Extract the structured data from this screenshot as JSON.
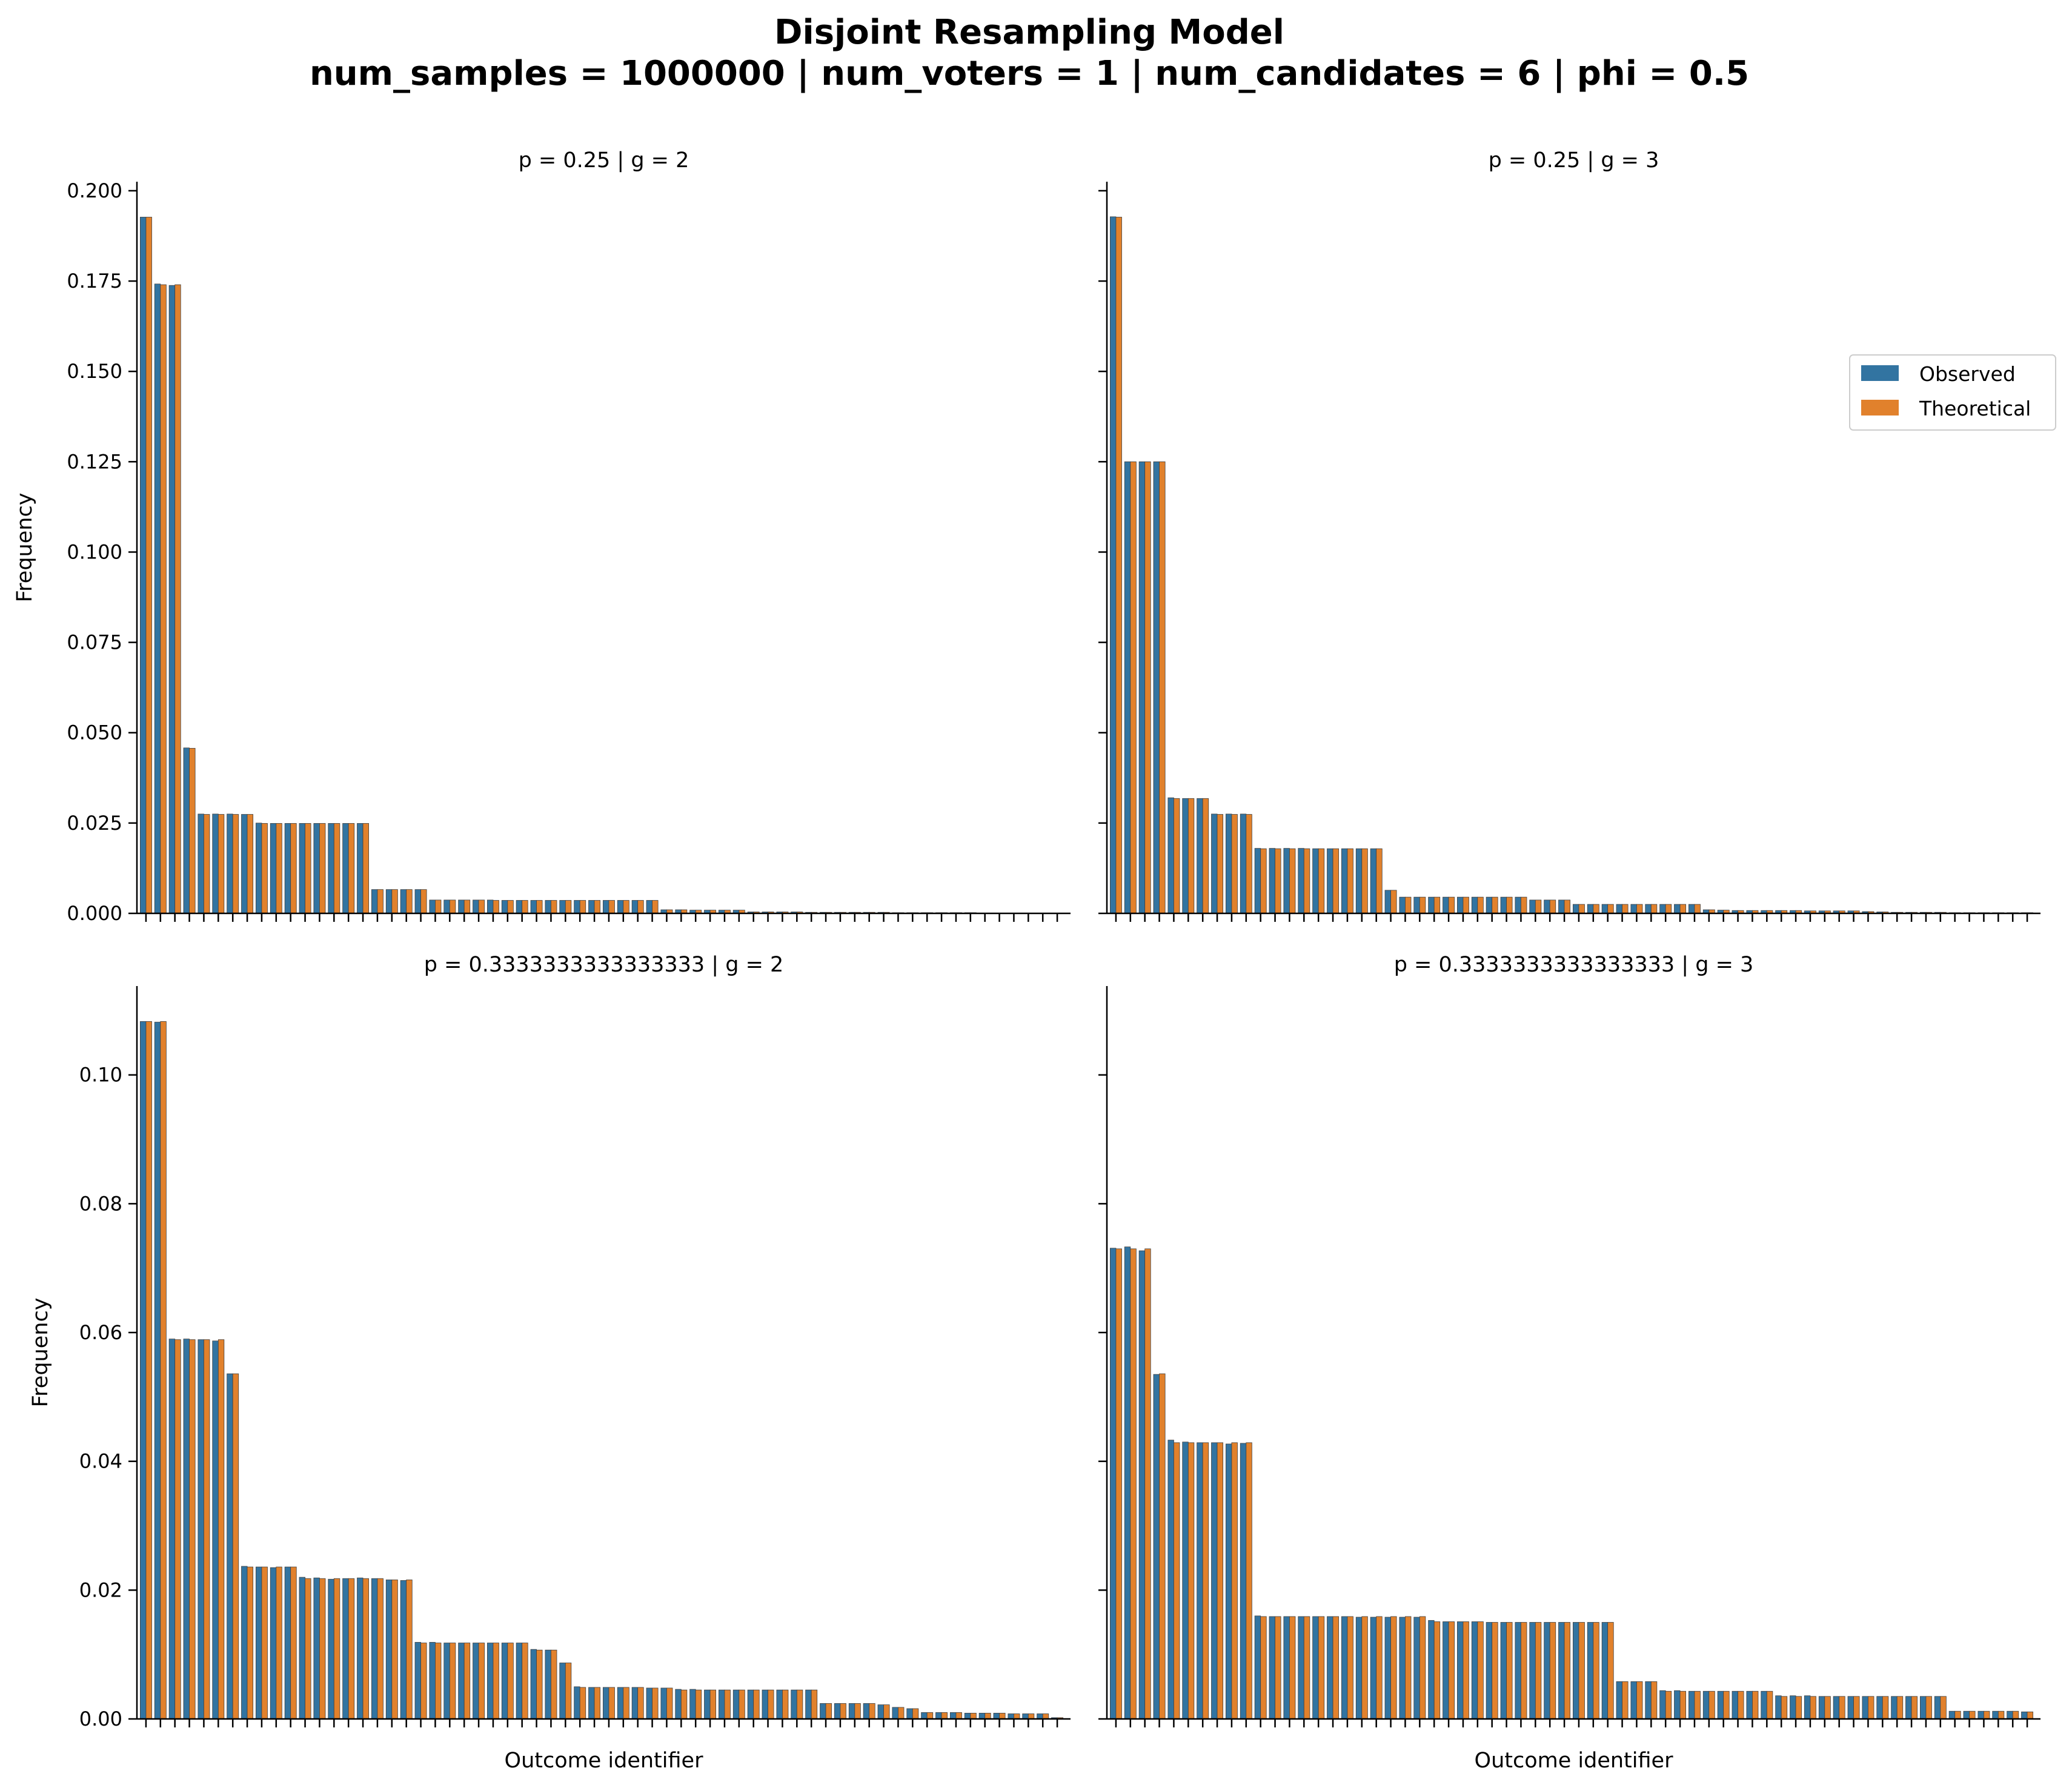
{
  "figure": {
    "title_line1": "Disjoint Resampling Model",
    "title_line2": "num_samples = 1000000 | num_voters = 1 | num_candidates = 6 | phi = 0.5"
  },
  "legend": {
    "items": [
      {
        "label": "Observed",
        "color": "#3274a1"
      },
      {
        "label": "Theoretical",
        "color": "#e1812c"
      }
    ],
    "placement": "right, beside top-right panel"
  },
  "chart_data": [
    {
      "type": "bar",
      "title": "p = 0.25 | g = 2",
      "xlabel": "",
      "ylabel": "Frequency",
      "ylim": [
        0,
        0.2025
      ],
      "yticks": [
        "0.000",
        "0.025",
        "0.050",
        "0.075",
        "0.100",
        "0.125",
        "0.150",
        "0.175",
        "0.200"
      ],
      "ytick_values": [
        0,
        0.025,
        0.05,
        0.075,
        0.1,
        0.125,
        0.15,
        0.175,
        0.2
      ],
      "num_categories": 64,
      "x_tick_labels": "unlabeled",
      "series": [
        {
          "name": "Observed",
          "values": [
            0.1927,
            0.1742,
            0.1738,
            0.0458,
            0.0275,
            0.0275,
            0.0275,
            0.0274,
            0.025,
            0.0249,
            0.0249,
            0.0249,
            0.0249,
            0.0249,
            0.0249,
            0.0249,
            0.0066,
            0.0066,
            0.0066,
            0.0066,
            0.0037,
            0.0037,
            0.0037,
            0.0037,
            0.0037,
            0.0036,
            0.0036,
            0.0036,
            0.0036,
            0.0036,
            0.0036,
            0.0036,
            0.0036,
            0.0036,
            0.0036,
            0.0036,
            0.001,
            0.001,
            0.0009,
            0.0009,
            0.0009,
            0.0009,
            0.0004,
            0.0004,
            0.0004,
            0.0004,
            0.0003,
            0.0003,
            0.0003,
            0.0003,
            0.0003,
            0.0003,
            0.0002,
            0.0002,
            0.0002,
            0.0002,
            0.0002,
            0.0002,
            0.0001,
            0.0001,
            0.0001,
            0.0001,
            0.0001,
            0.0001
          ]
        },
        {
          "name": "Theoretical",
          "values": [
            0.1927,
            0.174,
            0.174,
            0.0457,
            0.0274,
            0.0274,
            0.0274,
            0.0274,
            0.0249,
            0.0249,
            0.0249,
            0.0249,
            0.0249,
            0.0249,
            0.0249,
            0.0249,
            0.0066,
            0.0066,
            0.0066,
            0.0066,
            0.0037,
            0.0037,
            0.0037,
            0.0037,
            0.0036,
            0.0036,
            0.0036,
            0.0036,
            0.0036,
            0.0036,
            0.0036,
            0.0036,
            0.0036,
            0.0036,
            0.0036,
            0.0036,
            0.001,
            0.001,
            0.0009,
            0.0009,
            0.0009,
            0.0009,
            0.0004,
            0.0004,
            0.0004,
            0.0004,
            0.0003,
            0.0003,
            0.0003,
            0.0003,
            0.0003,
            0.0003,
            0.0002,
            0.0002,
            0.0002,
            0.0002,
            0.0002,
            0.0002,
            0.0001,
            0.0001,
            0.0001,
            0.0001,
            0.0001,
            0.0001
          ]
        }
      ]
    },
    {
      "type": "bar",
      "title": "p = 0.25 | g = 3",
      "xlabel": "",
      "ylabel": "",
      "ylim": [
        0,
        0.2025
      ],
      "yticks": [
        "",
        "",
        "",
        "",
        "",
        "",
        "",
        "",
        ""
      ],
      "ytick_values": [
        0,
        0.025,
        0.05,
        0.075,
        0.1,
        0.125,
        0.15,
        0.175,
        0.2
      ],
      "num_categories": 64,
      "x_tick_labels": "unlabeled",
      "series": [
        {
          "name": "Observed",
          "values": [
            0.1928,
            0.125,
            0.125,
            0.125,
            0.032,
            0.0318,
            0.0318,
            0.0275,
            0.0275,
            0.0275,
            0.018,
            0.018,
            0.018,
            0.018,
            0.0179,
            0.0179,
            0.0179,
            0.0179,
            0.0179,
            0.0064,
            0.0045,
            0.0045,
            0.0045,
            0.0045,
            0.0045,
            0.0045,
            0.0045,
            0.0045,
            0.0045,
            0.0037,
            0.0037,
            0.0037,
            0.0025,
            0.0025,
            0.0025,
            0.0025,
            0.0025,
            0.0025,
            0.0025,
            0.0025,
            0.0025,
            0.001,
            0.0009,
            0.0008,
            0.0008,
            0.0008,
            0.0008,
            0.0008,
            0.0007,
            0.0007,
            0.0007,
            0.0007,
            0.0005,
            0.0004,
            0.0003,
            0.0003,
            0.0003,
            0.0003,
            0.0002,
            0.0002,
            0.0002,
            0.0002,
            0.0002,
            0.0002
          ]
        },
        {
          "name": "Theoretical",
          "values": [
            0.1927,
            0.125,
            0.125,
            0.125,
            0.0318,
            0.0318,
            0.0318,
            0.0274,
            0.0274,
            0.0274,
            0.0179,
            0.0179,
            0.0179,
            0.0179,
            0.0179,
            0.0179,
            0.0179,
            0.0179,
            0.0179,
            0.0064,
            0.0045,
            0.0045,
            0.0045,
            0.0045,
            0.0045,
            0.0045,
            0.0045,
            0.0045,
            0.0045,
            0.0037,
            0.0037,
            0.0037,
            0.0025,
            0.0025,
            0.0025,
            0.0025,
            0.0025,
            0.0025,
            0.0025,
            0.0025,
            0.0025,
            0.001,
            0.0009,
            0.0008,
            0.0008,
            0.0008,
            0.0008,
            0.0008,
            0.0007,
            0.0007,
            0.0007,
            0.0007,
            0.0005,
            0.0004,
            0.0003,
            0.0003,
            0.0003,
            0.0003,
            0.0002,
            0.0002,
            0.0002,
            0.0002,
            0.0002,
            0.0002
          ]
        }
      ]
    },
    {
      "type": "bar",
      "title": "p = 0.3333333333333333 | g = 2",
      "xlabel": "Outcome identifier",
      "ylabel": "Frequency",
      "ylim": [
        0,
        0.1138
      ],
      "yticks": [
        "0.00",
        "0.02",
        "0.04",
        "0.06",
        "0.08",
        "0.10"
      ],
      "ytick_values": [
        0,
        0.02,
        0.04,
        0.06,
        0.08,
        0.1
      ],
      "num_categories": 64,
      "x_tick_labels": "unlabeled",
      "series": [
        {
          "name": "Observed",
          "values": [
            0.1083,
            0.1082,
            0.059,
            0.059,
            0.0589,
            0.0587,
            0.0536,
            0.0237,
            0.0236,
            0.0235,
            0.0236,
            0.022,
            0.0219,
            0.0217,
            0.0218,
            0.0219,
            0.0218,
            0.0216,
            0.0215,
            0.0119,
            0.0119,
            0.0118,
            0.0118,
            0.0118,
            0.0118,
            0.0118,
            0.0118,
            0.0108,
            0.0107,
            0.0087,
            0.005,
            0.0049,
            0.0049,
            0.0049,
            0.0049,
            0.0048,
            0.0048,
            0.0046,
            0.0046,
            0.0045,
            0.0045,
            0.0045,
            0.0045,
            0.0045,
            0.0045,
            0.0045,
            0.0045,
            0.0024,
            0.0024,
            0.0024,
            0.0024,
            0.0022,
            0.0018,
            0.0016,
            0.001,
            0.001,
            0.001,
            0.0009,
            0.0009,
            0.0009,
            0.0008,
            0.0008,
            0.0008,
            0.0002
          ]
        },
        {
          "name": "Theoretical",
          "values": [
            0.1083,
            0.1083,
            0.0589,
            0.0589,
            0.0589,
            0.0589,
            0.0536,
            0.0236,
            0.0236,
            0.0236,
            0.0236,
            0.0218,
            0.0218,
            0.0218,
            0.0218,
            0.0218,
            0.0218,
            0.0216,
            0.0216,
            0.0118,
            0.0118,
            0.0118,
            0.0118,
            0.0118,
            0.0118,
            0.0118,
            0.0118,
            0.0107,
            0.0107,
            0.0087,
            0.0049,
            0.0049,
            0.0049,
            0.0049,
            0.0049,
            0.0048,
            0.0048,
            0.0045,
            0.0045,
            0.0045,
            0.0045,
            0.0045,
            0.0045,
            0.0045,
            0.0045,
            0.0045,
            0.0045,
            0.0024,
            0.0024,
            0.0024,
            0.0024,
            0.0022,
            0.0018,
            0.0016,
            0.001,
            0.001,
            0.001,
            0.0009,
            0.0009,
            0.0009,
            0.0008,
            0.0008,
            0.0008,
            0.0002
          ]
        }
      ]
    },
    {
      "type": "bar",
      "title": "p = 0.3333333333333333 | g = 3",
      "xlabel": "Outcome identifier",
      "ylabel": "",
      "ylim": [
        0,
        0.1138
      ],
      "yticks": [
        "",
        "",
        "",
        "",
        "",
        ""
      ],
      "ytick_values": [
        0,
        0.02,
        0.04,
        0.06,
        0.08,
        0.1
      ],
      "num_categories": 64,
      "x_tick_labels": "unlabeled",
      "series": [
        {
          "name": "Observed",
          "values": [
            0.0731,
            0.0733,
            0.0727,
            0.0535,
            0.0433,
            0.043,
            0.0429,
            0.0429,
            0.0427,
            0.0428,
            0.016,
            0.0159,
            0.0159,
            0.0159,
            0.0159,
            0.0159,
            0.0159,
            0.0158,
            0.0158,
            0.0158,
            0.0158,
            0.0158,
            0.0153,
            0.0151,
            0.0151,
            0.0151,
            0.015,
            0.015,
            0.015,
            0.015,
            0.015,
            0.015,
            0.015,
            0.015,
            0.015,
            0.0058,
            0.0058,
            0.0058,
            0.0044,
            0.0044,
            0.0043,
            0.0043,
            0.0043,
            0.0043,
            0.0043,
            0.0043,
            0.0036,
            0.0036,
            0.0036,
            0.0035,
            0.0035,
            0.0035,
            0.0035,
            0.0035,
            0.0035,
            0.0035,
            0.0035,
            0.0035,
            0.0012,
            0.0012,
            0.0012,
            0.0012,
            0.0012,
            0.0011
          ]
        },
        {
          "name": "Theoretical",
          "values": [
            0.073,
            0.073,
            0.073,
            0.0536,
            0.0429,
            0.0429,
            0.0429,
            0.0429,
            0.0429,
            0.0429,
            0.0159,
            0.0159,
            0.0159,
            0.0159,
            0.0159,
            0.0159,
            0.0159,
            0.0159,
            0.0159,
            0.0159,
            0.0159,
            0.0159,
            0.0151,
            0.0151,
            0.0151,
            0.0151,
            0.015,
            0.015,
            0.015,
            0.015,
            0.015,
            0.015,
            0.015,
            0.015,
            0.015,
            0.0058,
            0.0058,
            0.0058,
            0.0043,
            0.0043,
            0.0043,
            0.0043,
            0.0043,
            0.0043,
            0.0043,
            0.0043,
            0.0035,
            0.0035,
            0.0035,
            0.0035,
            0.0035,
            0.0035,
            0.0035,
            0.0035,
            0.0035,
            0.0035,
            0.0035,
            0.0035,
            0.0012,
            0.0012,
            0.0012,
            0.0012,
            0.0012,
            0.0011
          ]
        }
      ]
    }
  ]
}
